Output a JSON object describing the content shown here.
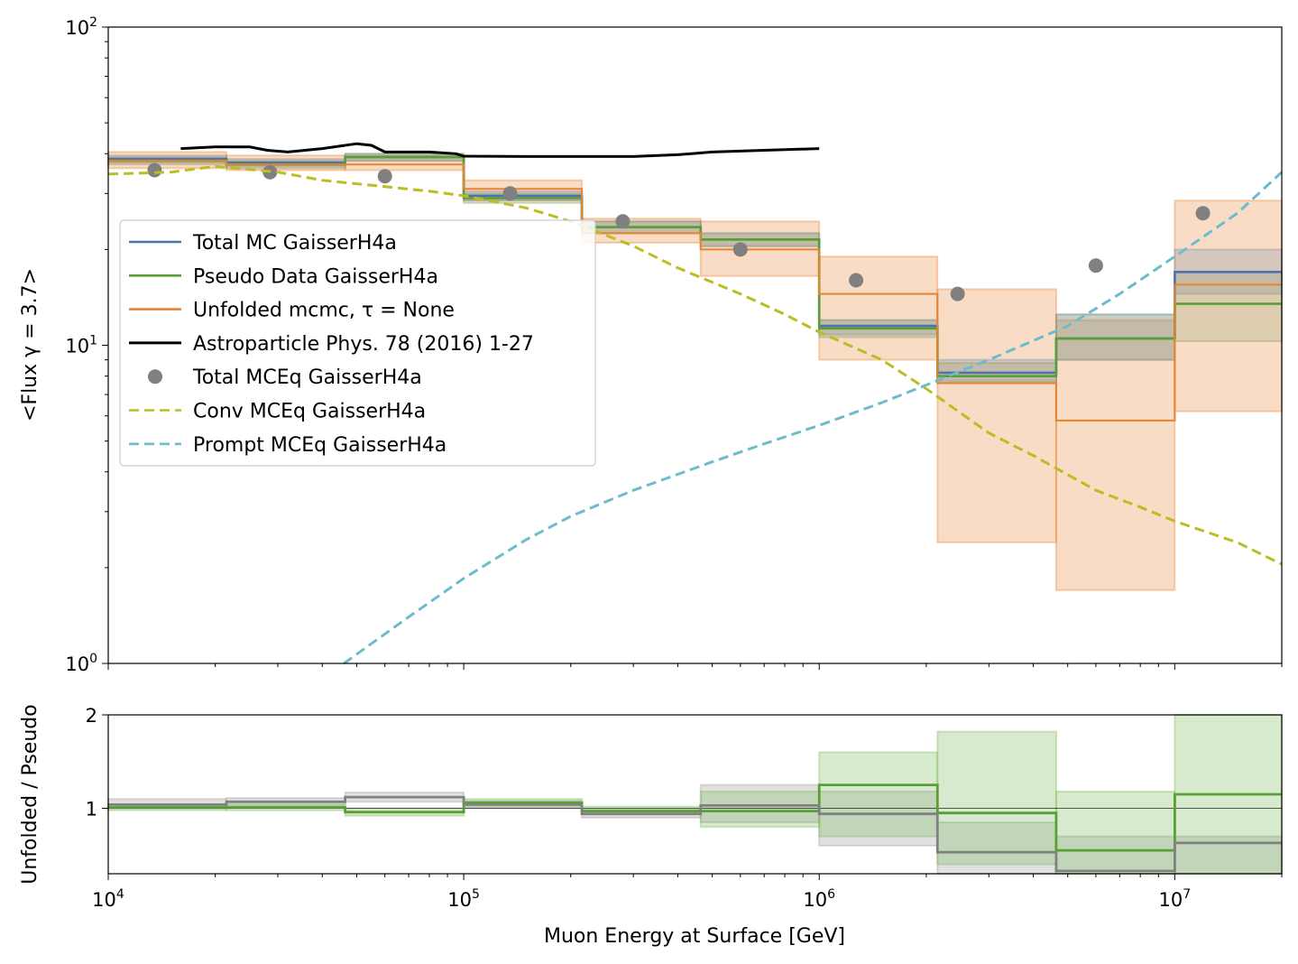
{
  "chart_data": [
    {
      "type": "line",
      "panel": "main",
      "ylabel": "<Flux γ = 3.7>",
      "xscale": "log",
      "yscale": "log",
      "xlim": [
        10000,
        20000000
      ],
      "ylim": [
        1,
        100
      ],
      "x_ticks": [
        {
          "base": "10",
          "exp": "4"
        },
        {
          "base": "10",
          "exp": "5"
        },
        {
          "base": "10",
          "exp": "6"
        },
        {
          "base": "10",
          "exp": "7"
        }
      ],
      "y_ticks": [
        {
          "base": "10",
          "exp": "0"
        },
        {
          "base": "10",
          "exp": "1"
        },
        {
          "base": "10",
          "exp": "2"
        }
      ],
      "legend_position": "center-left",
      "bin_edges": [
        10000,
        21500,
        46400,
        100000,
        215000,
        464000,
        1000000,
        2150000,
        4640000,
        10000000,
        20000000
      ],
      "series": [
        {
          "name": "Total MC GaisserH4a",
          "kind": "step",
          "color": "#4c72b0",
          "values": [
            38.5,
            37.5,
            39.0,
            29.5,
            23.5,
            21.5,
            11.5,
            8.2,
            10.5,
            17.0
          ],
          "band_low": [
            37.5,
            36.5,
            38.0,
            28.5,
            22.5,
            20.5,
            10.8,
            7.7,
            9.0,
            14.5
          ],
          "band_high": [
            39.5,
            38.5,
            40.0,
            30.5,
            24.5,
            22.5,
            12.0,
            9.0,
            12.5,
            20.0
          ]
        },
        {
          "name": "Pseudo Data GaisserH4a",
          "kind": "step",
          "color": "#5a9e36",
          "values": [
            38.0,
            37.0,
            39.0,
            29.0,
            23.5,
            21.5,
            11.3,
            8.0,
            10.5,
            13.5
          ],
          "band_low": [
            37.0,
            36.0,
            38.0,
            28.0,
            22.5,
            20.5,
            10.6,
            7.6,
            9.0,
            10.3
          ],
          "band_high": [
            39.0,
            38.0,
            40.0,
            30.0,
            24.5,
            22.5,
            12.0,
            8.8,
            12.5,
            17.0
          ]
        },
        {
          "name": "Unfolded mcmc, τ = None",
          "kind": "step",
          "color": "#e8822e",
          "values": [
            38.0,
            37.0,
            37.0,
            31.0,
            22.5,
            20.0,
            14.5,
            7.6,
            5.8,
            15.5
          ],
          "band_low": [
            36.0,
            35.5,
            35.5,
            28.5,
            21.0,
            16.5,
            9.0,
            2.4,
            1.7,
            6.2
          ],
          "band_high": [
            40.5,
            39.5,
            39.5,
            33.0,
            25.0,
            24.5,
            19.0,
            15.0,
            12.0,
            28.5
          ]
        },
        {
          "name": "Astroparticle Phys. 78 (2016) 1-27",
          "kind": "line",
          "color": "#000000",
          "x": [
            16000,
            20000,
            25000,
            28000,
            32000,
            40000,
            50000,
            55000,
            60000,
            80000,
            95000,
            100000,
            150000,
            200000,
            300000,
            400000,
            500000,
            700000,
            1000000
          ],
          "y": [
            41.5,
            42.0,
            42.0,
            41.0,
            40.5,
            41.5,
            43.0,
            42.5,
            40.5,
            40.5,
            40.0,
            39.3,
            39.2,
            39.2,
            39.2,
            39.7,
            40.5,
            41.0,
            41.5
          ]
        },
        {
          "name": "Total MCEq GaisserH4a",
          "kind": "points",
          "color": "#808080",
          "x": [
            13500,
            28500,
            60000,
            135000,
            280000,
            600000,
            1270000,
            2450000,
            6000000,
            12000000
          ],
          "y": [
            35.5,
            35.0,
            34.0,
            30.0,
            24.5,
            20.0,
            16.0,
            14.5,
            17.8,
            26.0
          ]
        },
        {
          "name": "Conv MCEq GaisserH4a",
          "kind": "dashed",
          "color": "#bcbd22",
          "x": [
            10000,
            15000,
            20000,
            30000,
            40000,
            60000,
            80000,
            100000,
            150000,
            200000,
            300000,
            400000,
            600000,
            800000,
            1000000,
            1500000,
            2000000,
            3000000,
            4000000,
            6000000,
            8000000,
            10000000,
            15000000,
            20000000
          ],
          "y": [
            34.5,
            35.0,
            36.5,
            35.0,
            33.0,
            31.5,
            30.5,
            29.5,
            27.0,
            24.5,
            20.5,
            17.5,
            14.5,
            12.5,
            11.0,
            9.0,
            7.3,
            5.3,
            4.5,
            3.5,
            3.1,
            2.8,
            2.4,
            2.05
          ]
        },
        {
          "name": "Prompt MCEq GaisserH4a",
          "kind": "dashed",
          "color": "#6bbccd",
          "x": [
            46000,
            70000,
            100000,
            150000,
            200000,
            300000,
            500000,
            700000,
            1000000,
            1500000,
            2000000,
            3000000,
            5000000,
            7000000,
            10000000,
            15000000,
            20000000
          ],
          "y": [
            1.0,
            1.4,
            1.85,
            2.45,
            2.9,
            3.5,
            4.3,
            4.9,
            5.6,
            6.6,
            7.5,
            9.0,
            11.5,
            14.5,
            19.0,
            26.0,
            35.0
          ]
        }
      ]
    },
    {
      "type": "line",
      "panel": "ratio",
      "xlabel": "Muon Energy at Surface [GeV]",
      "ylabel": "Unfolded / Pseudo",
      "xscale": "log",
      "xlim": [
        10000,
        20000000
      ],
      "ylim": [
        0.3,
        2.0
      ],
      "y_ticks": [
        "1",
        "2"
      ],
      "reference_line": 1.0,
      "bin_edges": [
        10000,
        21500,
        46400,
        100000,
        215000,
        464000,
        1000000,
        2150000,
        4640000,
        10000000,
        20000000
      ],
      "series": [
        {
          "color": "#5a9e36",
          "values": [
            1.01,
            1.01,
            0.96,
            1.06,
            0.97,
            0.97,
            1.25,
            0.95,
            0.55,
            1.15
          ],
          "band_low": [
            0.98,
            0.98,
            0.92,
            1.02,
            0.94,
            0.8,
            0.7,
            0.4,
            0.3,
            0.3
          ],
          "band_high": [
            1.04,
            1.04,
            1.0,
            1.1,
            1.02,
            1.18,
            1.6,
            1.82,
            1.18,
            2.0
          ]
        },
        {
          "color": "#808080",
          "values": [
            1.04,
            1.07,
            1.12,
            1.04,
            0.94,
            1.03,
            0.94,
            0.53,
            0.33,
            0.63
          ],
          "band_low": [
            1.0,
            1.03,
            1.07,
            1.0,
            0.9,
            0.85,
            0.6,
            0.3,
            0.3,
            0.3
          ],
          "band_high": [
            1.1,
            1.11,
            1.17,
            1.08,
            0.99,
            1.25,
            1.18,
            0.85,
            0.7,
            0.7
          ]
        }
      ]
    }
  ]
}
